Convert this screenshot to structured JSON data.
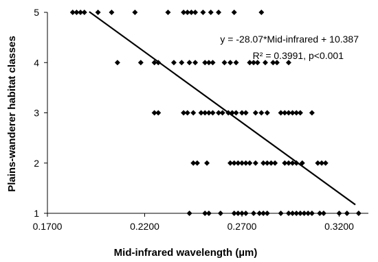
{
  "chart_data": {
    "type": "scatter",
    "title": "",
    "xlabel": "Mid-infrared wavelength (µm)",
    "ylabel": "Plains-wanderer habitat classes",
    "xlim": [
      0.17,
      0.335
    ],
    "ylim": [
      1,
      5
    ],
    "x_ticks": [
      "0.1700",
      "0.2200",
      "0.2700",
      "0.3200"
    ],
    "y_ticks": [
      "1",
      "2",
      "3",
      "4",
      "5"
    ],
    "grid": false,
    "legend": "none",
    "point_color": "#000000",
    "series": [
      {
        "values": [
          {
            "x": 0.183,
            "y": 5
          },
          {
            "x": 0.185,
            "y": 5
          },
          {
            "x": 0.187,
            "y": 5
          },
          {
            "x": 0.189,
            "y": 5
          },
          {
            "x": 0.196,
            "y": 5
          },
          {
            "x": 0.203,
            "y": 5
          },
          {
            "x": 0.215,
            "y": 5
          },
          {
            "x": 0.232,
            "y": 5
          },
          {
            "x": 0.24,
            "y": 5
          },
          {
            "x": 0.242,
            "y": 5
          },
          {
            "x": 0.244,
            "y": 5
          },
          {
            "x": 0.246,
            "y": 5
          },
          {
            "x": 0.25,
            "y": 5
          },
          {
            "x": 0.254,
            "y": 5
          },
          {
            "x": 0.258,
            "y": 5
          },
          {
            "x": 0.266,
            "y": 5
          },
          {
            "x": 0.28,
            "y": 5
          },
          {
            "x": 0.206,
            "y": 4
          },
          {
            "x": 0.218,
            "y": 4
          },
          {
            "x": 0.225,
            "y": 4
          },
          {
            "x": 0.227,
            "y": 4
          },
          {
            "x": 0.235,
            "y": 4
          },
          {
            "x": 0.239,
            "y": 4
          },
          {
            "x": 0.243,
            "y": 4
          },
          {
            "x": 0.246,
            "y": 4
          },
          {
            "x": 0.251,
            "y": 4
          },
          {
            "x": 0.253,
            "y": 4
          },
          {
            "x": 0.255,
            "y": 4
          },
          {
            "x": 0.261,
            "y": 4
          },
          {
            "x": 0.264,
            "y": 4
          },
          {
            "x": 0.267,
            "y": 4
          },
          {
            "x": 0.274,
            "y": 4
          },
          {
            "x": 0.276,
            "y": 4
          },
          {
            "x": 0.278,
            "y": 4
          },
          {
            "x": 0.282,
            "y": 4
          },
          {
            "x": 0.286,
            "y": 4
          },
          {
            "x": 0.288,
            "y": 4
          },
          {
            "x": 0.294,
            "y": 4
          },
          {
            "x": 0.225,
            "y": 3
          },
          {
            "x": 0.227,
            "y": 3
          },
          {
            "x": 0.24,
            "y": 3
          },
          {
            "x": 0.242,
            "y": 3
          },
          {
            "x": 0.245,
            "y": 3
          },
          {
            "x": 0.249,
            "y": 3
          },
          {
            "x": 0.251,
            "y": 3
          },
          {
            "x": 0.253,
            "y": 3
          },
          {
            "x": 0.255,
            "y": 3
          },
          {
            "x": 0.258,
            "y": 3
          },
          {
            "x": 0.26,
            "y": 3
          },
          {
            "x": 0.263,
            "y": 3
          },
          {
            "x": 0.265,
            "y": 3
          },
          {
            "x": 0.267,
            "y": 3
          },
          {
            "x": 0.27,
            "y": 3
          },
          {
            "x": 0.272,
            "y": 3
          },
          {
            "x": 0.277,
            "y": 3
          },
          {
            "x": 0.28,
            "y": 3
          },
          {
            "x": 0.283,
            "y": 3
          },
          {
            "x": 0.29,
            "y": 3
          },
          {
            "x": 0.292,
            "y": 3
          },
          {
            "x": 0.294,
            "y": 3
          },
          {
            "x": 0.296,
            "y": 3
          },
          {
            "x": 0.298,
            "y": 3
          },
          {
            "x": 0.3,
            "y": 3
          },
          {
            "x": 0.306,
            "y": 3
          },
          {
            "x": 0.245,
            "y": 2
          },
          {
            "x": 0.247,
            "y": 2
          },
          {
            "x": 0.252,
            "y": 2
          },
          {
            "x": 0.264,
            "y": 2
          },
          {
            "x": 0.266,
            "y": 2
          },
          {
            "x": 0.268,
            "y": 2
          },
          {
            "x": 0.27,
            "y": 2
          },
          {
            "x": 0.272,
            "y": 2
          },
          {
            "x": 0.274,
            "y": 2
          },
          {
            "x": 0.277,
            "y": 2
          },
          {
            "x": 0.281,
            "y": 2
          },
          {
            "x": 0.283,
            "y": 2
          },
          {
            "x": 0.285,
            "y": 2
          },
          {
            "x": 0.287,
            "y": 2
          },
          {
            "x": 0.292,
            "y": 2
          },
          {
            "x": 0.294,
            "y": 2
          },
          {
            "x": 0.296,
            "y": 2
          },
          {
            "x": 0.298,
            "y": 2
          },
          {
            "x": 0.301,
            "y": 2
          },
          {
            "x": 0.309,
            "y": 2
          },
          {
            "x": 0.311,
            "y": 2
          },
          {
            "x": 0.313,
            "y": 2
          },
          {
            "x": 0.243,
            "y": 1
          },
          {
            "x": 0.251,
            "y": 1
          },
          {
            "x": 0.253,
            "y": 1
          },
          {
            "x": 0.259,
            "y": 1
          },
          {
            "x": 0.266,
            "y": 1
          },
          {
            "x": 0.268,
            "y": 1
          },
          {
            "x": 0.27,
            "y": 1
          },
          {
            "x": 0.272,
            "y": 1
          },
          {
            "x": 0.276,
            "y": 1
          },
          {
            "x": 0.279,
            "y": 1
          },
          {
            "x": 0.281,
            "y": 1
          },
          {
            "x": 0.283,
            "y": 1
          },
          {
            "x": 0.29,
            "y": 1
          },
          {
            "x": 0.294,
            "y": 1
          },
          {
            "x": 0.296,
            "y": 1
          },
          {
            "x": 0.298,
            "y": 1
          },
          {
            "x": 0.3,
            "y": 1
          },
          {
            "x": 0.302,
            "y": 1
          },
          {
            "x": 0.304,
            "y": 1
          },
          {
            "x": 0.306,
            "y": 1
          },
          {
            "x": 0.31,
            "y": 1
          },
          {
            "x": 0.312,
            "y": 1
          },
          {
            "x": 0.32,
            "y": 1
          },
          {
            "x": 0.324,
            "y": 1
          },
          {
            "x": 0.33,
            "y": 1
          }
        ]
      }
    ],
    "trendline": {
      "slope": -28.07,
      "intercept": 10.387,
      "x_range": [
        0.1915,
        0.3283
      ]
    },
    "annotations": [
      "y = -28.07*Mid-infrared + 10.387",
      "R² = 0.3991, p<0.001"
    ]
  }
}
